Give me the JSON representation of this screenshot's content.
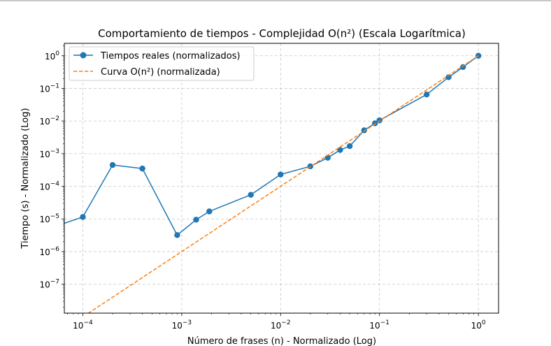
{
  "chart_data": {
    "type": "line",
    "title": "Comportamiento de tiempos - Complejidad O(n²) (Escala Logarítmica)",
    "xlabel": "Número de frases (n) - Normalizado (Log)",
    "ylabel": "Tiempo (s) - Normalizado (Log)",
    "xscale": "log",
    "yscale": "log",
    "xlim": [
      6.5e-05,
      1.6
    ],
    "ylim": [
      1.3e-08,
      2.4
    ],
    "grid": true,
    "legend_position": "top-left",
    "x_ticks": [
      {
        "sup": "−4",
        "value": 0.0001
      },
      {
        "sup": "−3",
        "value": 0.001
      },
      {
        "sup": "−2",
        "value": 0.01
      },
      {
        "sup": "−1",
        "value": 0.1
      },
      {
        "sup": "0",
        "value": 1
      }
    ],
    "y_ticks": [
      {
        "sup": "−7",
        "value": 1e-07
      },
      {
        "sup": "−6",
        "value": 1e-06
      },
      {
        "sup": "−5",
        "value": 1e-05
      },
      {
        "sup": "−4",
        "value": 0.0001
      },
      {
        "sup": "−3",
        "value": 0.001
      },
      {
        "sup": "−2",
        "value": 0.01
      },
      {
        "sup": "−1",
        "value": 0.1
      },
      {
        "sup": "0",
        "value": 1
      }
    ],
    "tick_base": "10",
    "series": [
      {
        "name": "Tiempos reales (normalizados)",
        "color": "#1f77b4",
        "style": "solid-with-circle-markers",
        "x": [
          5.26e-05,
          0.0001,
          0.0002,
          0.0004,
          0.0009,
          0.0014,
          0.0019,
          0.005,
          0.01,
          0.02,
          0.03,
          0.04,
          0.05,
          0.07,
          0.09,
          0.1,
          0.3,
          0.5,
          0.7,
          1.0
        ],
        "y": [
          5.9e-06,
          1.15e-05,
          0.00045,
          0.00035,
          3.2e-06,
          9.5e-06,
          1.7e-05,
          5.5e-05,
          0.00023,
          0.00041,
          0.00075,
          0.0013,
          0.0017,
          0.0052,
          0.0085,
          0.0105,
          0.065,
          0.22,
          0.45,
          1.0
        ]
      },
      {
        "name": "Curva O(n²) (normalizada)",
        "color": "#ff7f0e",
        "style": "dashed",
        "x": [
          5.26e-05,
          0.0001,
          0.0002,
          0.0004,
          0.0009,
          0.0014,
          0.0019,
          0.005,
          0.01,
          0.02,
          0.03,
          0.04,
          0.05,
          0.07,
          0.09,
          0.1,
          0.3,
          0.5,
          0.7,
          1.0
        ],
        "y": [
          2.8e-09,
          1e-08,
          4e-08,
          1.6e-07,
          8.1e-07,
          1.96e-06,
          3.61e-06,
          2.5e-05,
          0.0001,
          0.0004,
          0.0009,
          0.0016,
          0.0025,
          0.0049,
          0.0081,
          0.01,
          0.09,
          0.25,
          0.49,
          1.0
        ]
      }
    ]
  }
}
